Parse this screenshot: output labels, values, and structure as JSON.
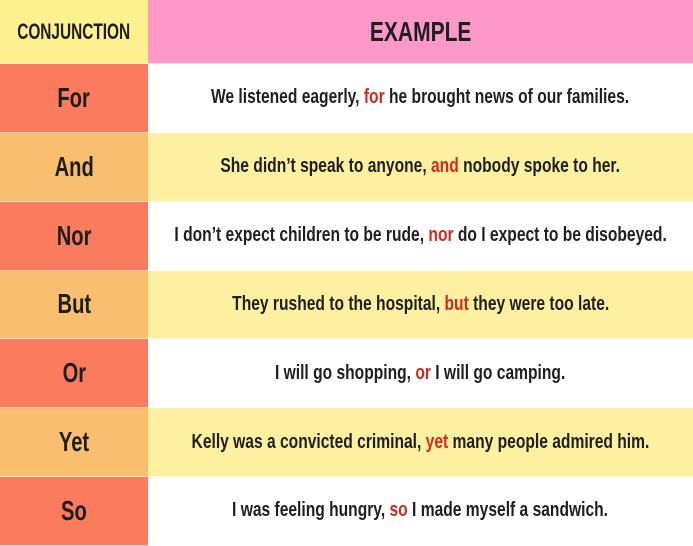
{
  "header": {
    "conjunction": "CONJUNCTION",
    "example": "EXAMPLE"
  },
  "colors": {
    "header_left": "#fdf18f",
    "header_right": "#fd98c8",
    "conj_dark": "#fb7b5f",
    "conj_light": "#f9be6f",
    "row_yellow": "#fdf0a0",
    "highlight": "#d42a1e"
  },
  "rows": [
    {
      "conjunction": "For",
      "before": "We listened eagerly, ",
      "word": "for",
      "after": " he brought news of our families."
    },
    {
      "conjunction": "And",
      "before": "She didn’t speak to anyone, ",
      "word": "and",
      "after": " nobody spoke to her."
    },
    {
      "conjunction": "Nor",
      "before": "I don’t expect children to be rude, ",
      "word": "nor",
      "after": " do I expect to be disobeyed."
    },
    {
      "conjunction": "But",
      "before": "They rushed to the hospital, ",
      "word": "but",
      "after": " they were too late."
    },
    {
      "conjunction": "Or",
      "before": "I will go shopping, ",
      "word": "or",
      "after": " I will go camping."
    },
    {
      "conjunction": "Yet",
      "before": "Kelly was a convicted criminal, ",
      "word": "yet",
      "after": " many people admired him."
    },
    {
      "conjunction": "So",
      "before": "I was feeling hungry, ",
      "word": "so",
      "after": " I made myself a sandwich."
    }
  ]
}
